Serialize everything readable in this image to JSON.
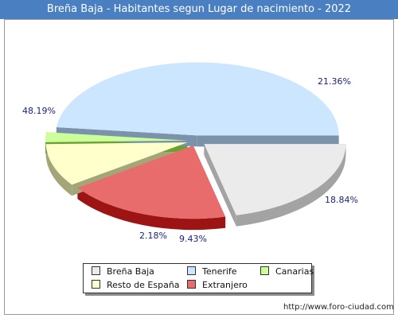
{
  "title": "Breña Baja - Habitantes segun Lugar de nacimiento - 2022",
  "url": "http://www.foro-ciudad.com",
  "chart_data": {
    "type": "pie",
    "title": "Breña Baja - Habitantes segun Lugar de nacimiento - 2022",
    "slices": [
      {
        "name": "Breña Baja",
        "value": 21.36,
        "label": "21.36%",
        "color": "#ebebeb",
        "side": "#a3a3a3"
      },
      {
        "name": "Extranjero",
        "value": 18.84,
        "label": "18.84%",
        "color": "#e96c6c",
        "side": "#9c1414"
      },
      {
        "name": "Resto de España",
        "value": 9.43,
        "label": "9.43%",
        "color": "#ffffcc",
        "side": "#a5a57a"
      },
      {
        "name": "Canarias",
        "value": 2.18,
        "label": "2.18%",
        "color": "#ccff99",
        "side": "#6aa035"
      },
      {
        "name": "Tenerife",
        "value": 48.19,
        "label": "48.19%",
        "color": "#cce6ff",
        "side": "#7a93ab"
      }
    ],
    "legend": [
      {
        "name": "Breña Baja",
        "color": "#ebebeb"
      },
      {
        "name": "Tenerife",
        "color": "#cce6ff"
      },
      {
        "name": "Canarias",
        "color": "#ccff99"
      },
      {
        "name": "Resto de España",
        "color": "#ffffcc"
      },
      {
        "name": "Extranjero",
        "color": "#e96c6c"
      }
    ],
    "legend_position": "bottom"
  }
}
